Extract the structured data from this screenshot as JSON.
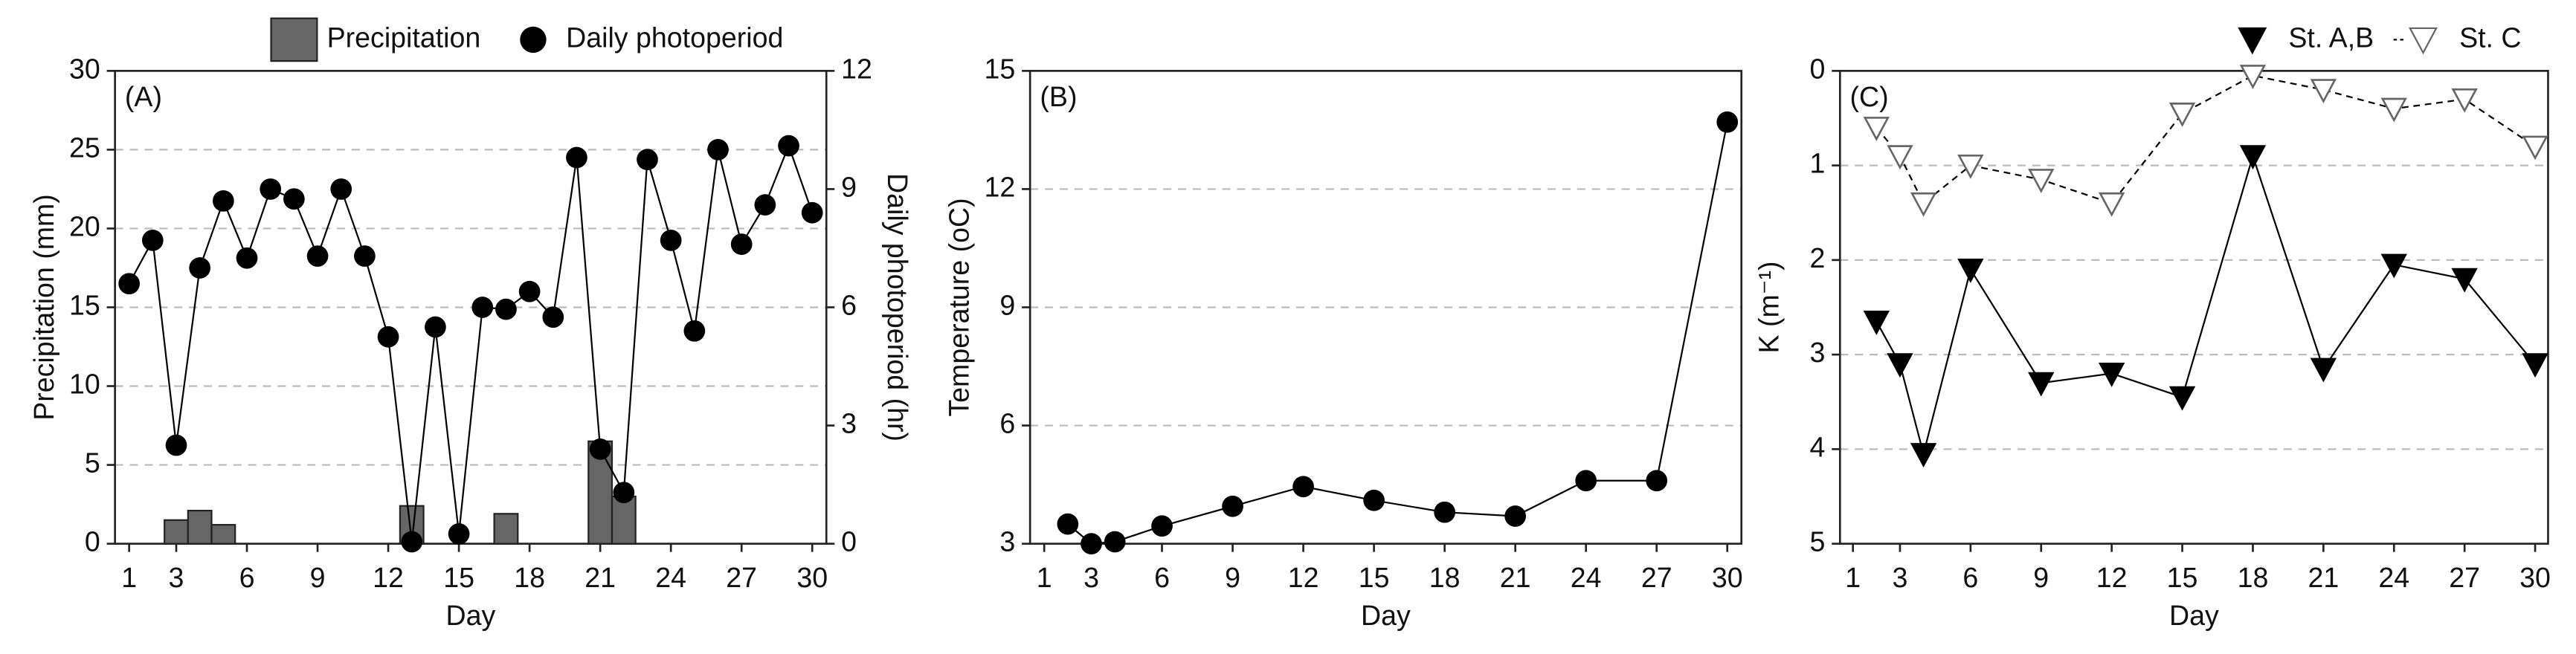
{
  "chart_data": [
    {
      "type": "combo",
      "panel_label": "(A)",
      "x_label": "Day",
      "y_label": "Precipitation (mm)",
      "y2_label": "Daily photoperiod (hr)",
      "xlim": [
        0.4,
        30.6
      ],
      "xticks": [
        1,
        3,
        6,
        9,
        12,
        15,
        18,
        21,
        24,
        27,
        30
      ],
      "ylim": [
        0,
        30
      ],
      "yticks": [
        0,
        5,
        10,
        15,
        20,
        25,
        30
      ],
      "y2lim": [
        0,
        12
      ],
      "y2ticks": [
        0,
        3,
        6,
        9,
        12
      ],
      "grid": true,
      "legend": "top",
      "series": [
        {
          "name": "Precipitation",
          "type": "bar",
          "color": "#666666",
          "x": [
            3,
            4,
            5,
            13,
            17,
            21,
            22
          ],
          "values": [
            1.5,
            2.1,
            1.2,
            2.4,
            1.9,
            6.5,
            3.0
          ]
        },
        {
          "name": "Daily photoperiod",
          "type": "line",
          "axis": "y2",
          "marker": "circle",
          "color": "#000000",
          "x": [
            1,
            2,
            3,
            4,
            5,
            6,
            7,
            8,
            9,
            10,
            11,
            12,
            13,
            14,
            15,
            16,
            17,
            18,
            19,
            20,
            21,
            22,
            23,
            24,
            25,
            26,
            27,
            28,
            29,
            30
          ],
          "values": [
            6.6,
            7.7,
            2.5,
            7.0,
            8.7,
            7.25,
            9.0,
            8.75,
            7.3,
            9.0,
            7.3,
            5.25,
            0.05,
            5.5,
            0.25,
            6.0,
            5.95,
            6.4,
            5.75,
            9.8,
            2.4,
            1.3,
            9.75,
            7.7,
            5.4,
            10.0,
            7.6,
            8.6,
            10.1,
            8.4
          ]
        }
      ]
    },
    {
      "type": "line",
      "panel_label": "(B)",
      "x_label": "Day",
      "y_label": "Temperature (oC)",
      "xlim": [
        0.4,
        30.6
      ],
      "xticks": [
        1,
        3,
        6,
        9,
        12,
        15,
        18,
        21,
        24,
        27,
        30
      ],
      "ylim": [
        3,
        15
      ],
      "yticks": [
        3,
        6,
        9,
        12,
        15
      ],
      "grid": true,
      "series": [
        {
          "type": "line",
          "marker": "circle",
          "color": "#000000",
          "x": [
            2,
            3,
            4,
            6,
            9,
            12,
            15,
            18,
            21,
            24,
            27,
            30
          ],
          "values": [
            3.5,
            3.0,
            3.05,
            3.45,
            3.95,
            4.45,
            4.1,
            3.8,
            3.7,
            4.6,
            4.6,
            13.7
          ]
        }
      ]
    },
    {
      "type": "line",
      "panel_label": "(C)",
      "x_label": "Day",
      "y_label": "K (m⁻¹)",
      "xlim": [
        0.45,
        30.55
      ],
      "xticks": [
        1,
        3,
        6,
        9,
        12,
        15,
        18,
        21,
        24,
        27,
        30
      ],
      "ylim": [
        5,
        0
      ],
      "yticks": [
        0,
        1,
        2,
        3,
        4,
        5
      ],
      "grid": true,
      "legend": "top right",
      "series": [
        {
          "name": "St. A,B",
          "type": "line",
          "marker": "triangle-down",
          "color": "#000000",
          "line_style": "solid",
          "x": [
            2,
            3,
            4,
            6,
            9,
            12,
            15,
            18,
            21,
            24,
            27,
            30
          ],
          "values": [
            2.65,
            3.1,
            4.05,
            2.1,
            3.3,
            3.2,
            3.45,
            0.9,
            3.15,
            2.05,
            2.2,
            3.1
          ]
        },
        {
          "name": "St. C",
          "type": "line",
          "marker": "triangle-down-open",
          "color": "#000000",
          "line_style": "dashed",
          "x": [
            2,
            3,
            4,
            6,
            9,
            12,
            15,
            18,
            21,
            24,
            27,
            30
          ],
          "values": [
            0.6,
            0.9,
            1.4,
            1.0,
            1.15,
            1.4,
            0.45,
            0.05,
            0.2,
            0.4,
            0.3,
            0.8
          ]
        }
      ]
    }
  ]
}
